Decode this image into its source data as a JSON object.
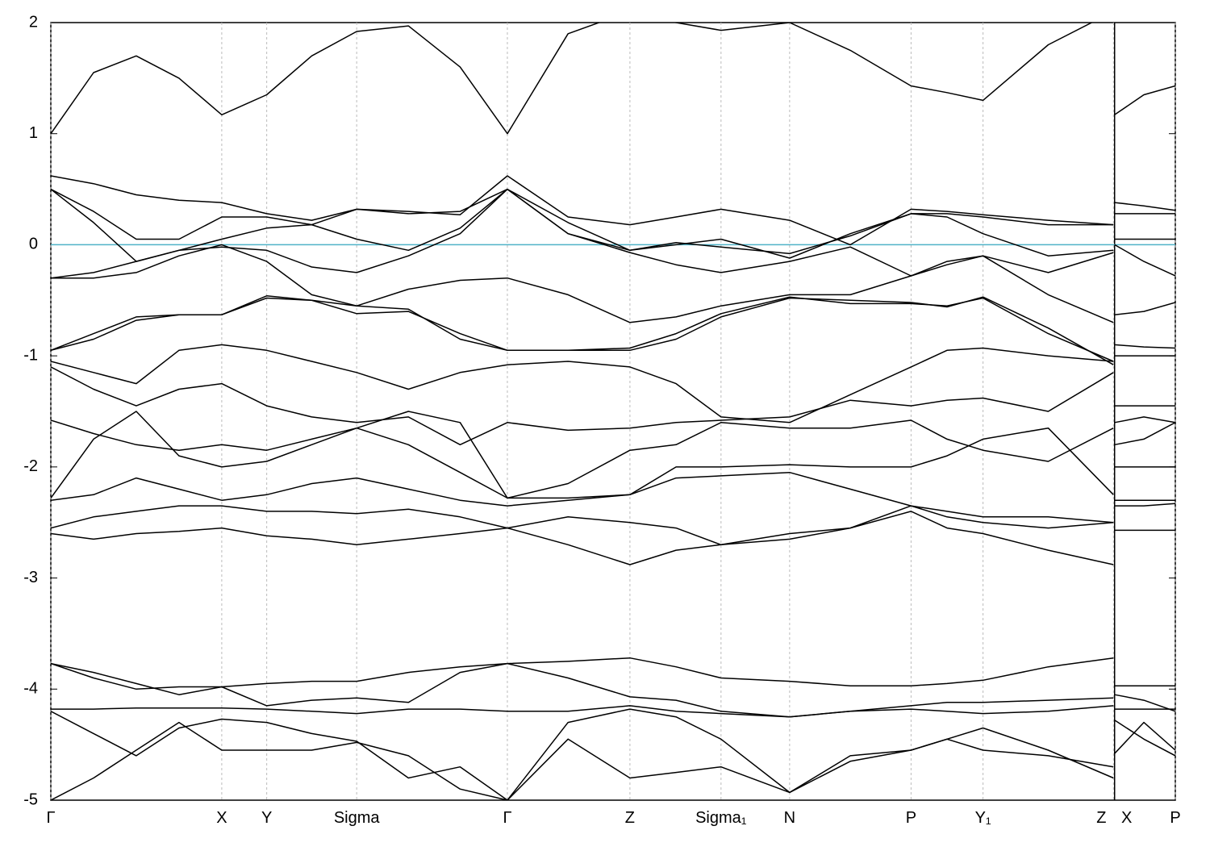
{
  "chart_data": {
    "type": "line",
    "xlim": [
      0,
      1
    ],
    "ylim": [
      -5,
      2
    ],
    "yticks": [
      2,
      1,
      0,
      -1,
      -2,
      -3,
      -4,
      -5
    ],
    "xticks": [
      {
        "value": 0,
        "label": "Γ"
      },
      {
        "value": 0.152,
        "label": "X"
      },
      {
        "value": 0.192,
        "label": "Y"
      },
      {
        "value": 0.272,
        "label": "Sigma"
      },
      {
        "value": 0.406,
        "label": "Γ"
      },
      {
        "value": 0.515,
        "label": "Z"
      },
      {
        "value": 0.596,
        "label": "Sigma₁"
      },
      {
        "value": 0.657,
        "label": "N"
      },
      {
        "value": 0.765,
        "label": "P"
      },
      {
        "value": 0.829,
        "label": "Y₁"
      },
      {
        "value": 0.945,
        "label": "Z"
      },
      {
        "value": 0.946,
        "label": "X"
      },
      {
        "value": 1,
        "label": "P"
      }
    ],
    "grid": true,
    "reference_line": {
      "value": 0,
      "color": "#4fb3c8"
    },
    "x": [
      0,
      0.038,
      0.076,
      0.114,
      0.152,
      0.192,
      0.232,
      0.272,
      0.318,
      0.364,
      0.406,
      0.46,
      0.515,
      0.556,
      0.596,
      0.657,
      0.711,
      0.765,
      0.797,
      0.829,
      0.887,
      0.945,
      0.945,
      0.946,
      0.972,
      1
    ],
    "series": [
      {
        "color": "#000000",
        "values": [
          1.0,
          1.55,
          1.7,
          1.5,
          1.17,
          1.35,
          1.7,
          1.92,
          1.97,
          1.6,
          1.0,
          1.9,
          2.1,
          2.0,
          1.93,
          2.0,
          1.75,
          1.43,
          1.37,
          1.3,
          1.8,
          2.1,
          null,
          1.17,
          1.35,
          1.43
        ]
      },
      {
        "color": "#000000",
        "values": [
          0.62,
          0.55,
          0.45,
          0.4,
          0.38,
          0.28,
          0.22,
          0.32,
          0.3,
          0.27,
          0.62,
          0.25,
          0.18,
          0.25,
          0.32,
          0.22,
          0.0,
          0.32,
          0.3,
          0.27,
          0.22,
          0.18,
          null,
          0.38,
          0.35,
          0.31
        ]
      },
      {
        "color": "#000000",
        "values": [
          0.5,
          0.3,
          0.05,
          0.05,
          0.25,
          0.25,
          0.18,
          0.32,
          0.28,
          0.3,
          0.5,
          0.1,
          -0.05,
          0.0,
          0.05,
          -0.12,
          0.1,
          0.28,
          0.28,
          0.25,
          0.18,
          0.18,
          null,
          0.28,
          0.28,
          0.28
        ]
      },
      {
        "color": "#000000",
        "values": [
          0.5,
          0.2,
          -0.15,
          -0.05,
          0.05,
          0.15,
          0.18,
          0.05,
          -0.05,
          0.15,
          0.5,
          0.2,
          -0.05,
          0.02,
          -0.02,
          -0.08,
          0.08,
          0.28,
          0.25,
          0.1,
          -0.1,
          -0.05,
          null,
          0.05,
          0.05,
          0.05
        ]
      },
      {
        "color": "#000000",
        "values": [
          -0.3,
          -0.25,
          -0.15,
          -0.05,
          -0.02,
          -0.05,
          -0.2,
          -0.25,
          -0.1,
          0.1,
          0.5,
          0.1,
          -0.07,
          -0.18,
          -0.25,
          -0.15,
          -0.02,
          -0.28,
          -0.15,
          -0.1,
          -0.25,
          -0.07,
          null,
          0.0,
          -0.15,
          -0.28
        ]
      },
      {
        "color": "#000000",
        "values": [
          -0.3,
          -0.3,
          -0.25,
          -0.1,
          0.0,
          -0.15,
          -0.45,
          -0.55,
          -0.4,
          -0.32,
          -0.3,
          -0.45,
          -0.7,
          -0.65,
          -0.55,
          -0.45,
          -0.45,
          -0.28,
          -0.18,
          -0.1,
          -0.45,
          -0.7,
          null,
          -0.63,
          -0.6,
          -0.52
        ]
      },
      {
        "color": "#000000",
        "values": [
          -0.95,
          -0.85,
          -0.68,
          -0.63,
          -0.63,
          -0.48,
          -0.5,
          -0.62,
          -0.6,
          -0.8,
          -0.95,
          -0.95,
          -0.93,
          -0.8,
          -0.62,
          -0.47,
          -0.53,
          -0.53,
          -0.55,
          -0.48,
          -0.8,
          -1.05,
          null,
          -0.9,
          -0.92,
          -0.93
        ]
      },
      {
        "color": "#000000",
        "values": [
          -0.95,
          -0.8,
          -0.65,
          -0.63,
          -0.63,
          -0.46,
          -0.5,
          -0.55,
          -0.58,
          -0.85,
          -0.95,
          -0.95,
          -0.95,
          -0.85,
          -0.65,
          -0.48,
          -0.5,
          -0.52,
          -0.56,
          -0.47,
          -0.75,
          -1.08,
          null,
          -1.0,
          -1.0,
          -1.0
        ]
      },
      {
        "color": "#000000",
        "values": [
          -1.05,
          -1.15,
          -1.25,
          -0.95,
          -0.9,
          -0.95,
          -1.05,
          -1.15,
          -1.3,
          -1.15,
          -1.08,
          -1.05,
          -1.1,
          -1.25,
          -1.55,
          -1.6,
          -1.35,
          -1.1,
          -0.95,
          -0.93,
          -1.0,
          -1.05,
          null,
          -1.45,
          -1.45,
          -1.45
        ]
      },
      {
        "color": "#000000",
        "values": [
          -1.1,
          -1.3,
          -1.45,
          -1.3,
          -1.25,
          -1.45,
          -1.55,
          -1.6,
          -1.55,
          -1.8,
          -1.6,
          -1.67,
          -1.65,
          -1.6,
          -1.58,
          -1.55,
          -1.4,
          -1.45,
          -1.4,
          -1.38,
          -1.5,
          -1.15,
          null,
          -1.6,
          -1.55,
          -1.6
        ]
      },
      {
        "color": "#000000",
        "values": [
          -1.58,
          -1.7,
          -1.8,
          -1.85,
          -1.8,
          -1.85,
          -1.75,
          -1.65,
          -1.5,
          -1.6,
          -2.28,
          -2.15,
          -1.85,
          -1.8,
          -1.6,
          -1.65,
          -1.65,
          -1.58,
          -1.75,
          -1.85,
          -1.95,
          -1.65,
          null,
          -1.8,
          -1.75,
          -1.6
        ]
      },
      {
        "color": "#000000",
        "values": [
          -2.28,
          -1.75,
          -1.5,
          -1.9,
          -2.0,
          -1.95,
          -1.8,
          -1.65,
          -1.8,
          -2.05,
          -2.28,
          -2.28,
          -2.25,
          -2.0,
          -2.0,
          -1.98,
          -2.0,
          -2.0,
          -1.9,
          -1.75,
          -1.65,
          -2.25,
          null,
          -2.0,
          -2.0,
          -2.0
        ]
      },
      {
        "color": "#000000",
        "values": [
          -2.3,
          -2.25,
          -2.1,
          -2.2,
          -2.3,
          -2.25,
          -2.15,
          -2.1,
          -2.2,
          -2.3,
          -2.35,
          -2.3,
          -2.25,
          -2.1,
          -2.08,
          -2.05,
          -2.2,
          -2.35,
          -2.4,
          -2.45,
          -2.45,
          -2.5,
          null,
          -2.3,
          -2.3,
          -2.3
        ]
      },
      {
        "color": "#000000",
        "values": [
          -2.55,
          -2.45,
          -2.4,
          -2.35,
          -2.35,
          -2.4,
          -2.4,
          -2.42,
          -2.38,
          -2.45,
          -2.55,
          -2.45,
          -2.5,
          -2.55,
          -2.7,
          -2.6,
          -2.55,
          -2.35,
          -2.45,
          -2.5,
          -2.55,
          -2.5,
          null,
          -2.35,
          -2.35,
          -2.33
        ]
      },
      {
        "color": "#000000",
        "values": [
          -2.6,
          -2.65,
          -2.6,
          -2.58,
          -2.55,
          -2.62,
          -2.65,
          -2.7,
          -2.65,
          -2.6,
          -2.55,
          -2.7,
          -2.88,
          -2.75,
          -2.7,
          -2.65,
          -2.55,
          -2.4,
          -2.55,
          -2.6,
          -2.75,
          -2.88,
          null,
          -2.57,
          -2.57,
          -2.57
        ]
      },
      {
        "color": "#000000",
        "values": [
          -3.77,
          -3.9,
          -4.0,
          -3.98,
          -3.98,
          -3.95,
          -3.93,
          -3.93,
          -3.85,
          -3.8,
          -3.77,
          -3.75,
          -3.72,
          -3.8,
          -3.9,
          -3.93,
          -3.97,
          -3.97,
          -3.95,
          -3.92,
          -3.8,
          -3.72,
          null,
          -3.97,
          -3.97,
          -3.97
        ]
      },
      {
        "color": "#000000",
        "values": [
          -3.77,
          -3.85,
          -3.95,
          -4.05,
          -3.98,
          -4.15,
          -4.1,
          -4.08,
          -4.12,
          -3.85,
          -3.77,
          -3.9,
          -4.07,
          -4.1,
          -4.2,
          -4.25,
          -4.2,
          -4.15,
          -4.12,
          -4.12,
          -4.1,
          -4.08,
          null,
          -4.05,
          -4.1,
          -4.2
        ]
      },
      {
        "color": "#000000",
        "values": [
          -4.18,
          -4.18,
          -4.17,
          -4.17,
          -4.17,
          -4.18,
          -4.2,
          -4.22,
          -4.18,
          -4.18,
          -4.2,
          -4.2,
          -4.15,
          -4.2,
          -4.22,
          -4.25,
          -4.2,
          -4.18,
          -4.2,
          -4.22,
          -4.2,
          -4.15,
          null,
          -4.18,
          -4.18,
          -4.18
        ]
      },
      {
        "color": "#000000",
        "values": [
          -4.2,
          -4.4,
          -4.6,
          -4.35,
          -4.27,
          -4.3,
          -4.4,
          -4.47,
          -4.8,
          -4.7,
          -5.0,
          -4.3,
          -4.18,
          -4.25,
          -4.45,
          -4.93,
          -4.6,
          -4.55,
          -4.45,
          -4.35,
          -4.55,
          -4.8,
          null,
          -4.28,
          -4.45,
          -4.6
        ]
      },
      {
        "color": "#000000",
        "values": [
          -5.0,
          -4.8,
          -4.55,
          -4.3,
          -4.55,
          -4.55,
          -4.55,
          -4.48,
          -4.6,
          -4.9,
          -5.0,
          -4.45,
          -4.8,
          -4.75,
          -4.7,
          -4.93,
          -4.65,
          -4.55,
          -4.45,
          -4.55,
          -4.6,
          -4.7,
          null,
          -4.58,
          -4.3,
          -4.55
        ]
      }
    ]
  }
}
